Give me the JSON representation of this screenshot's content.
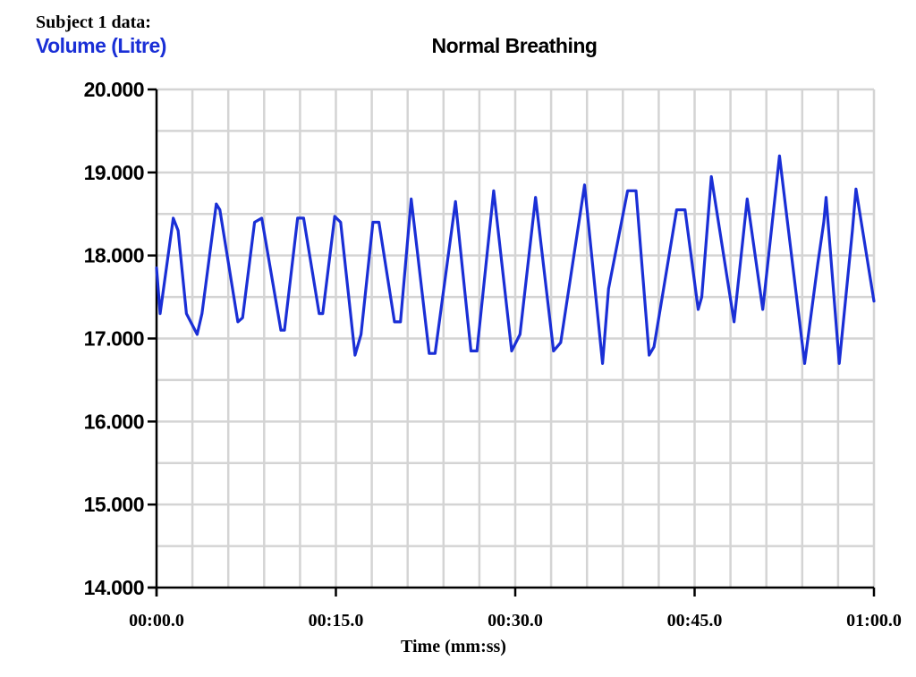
{
  "header": {
    "subject_label": "Subject 1 data:"
  },
  "chart_data": {
    "type": "line",
    "title": "Normal Breathing",
    "ylabel": "Volume (Litre)",
    "xlabel": "Time (mm:ss)",
    "ylim": [
      14.0,
      20.0
    ],
    "xlim": [
      0,
      60
    ],
    "y_ticks": [
      {
        "value": 14.0,
        "label": "14.000"
      },
      {
        "value": 15.0,
        "label": "15.000"
      },
      {
        "value": 16.0,
        "label": "16.000"
      },
      {
        "value": 17.0,
        "label": "17.000"
      },
      {
        "value": 18.0,
        "label": "18.000"
      },
      {
        "value": 19.0,
        "label": "19.000"
      },
      {
        "value": 20.0,
        "label": "20.000"
      }
    ],
    "x_ticks": [
      {
        "value": 0,
        "label": "00:00.0"
      },
      {
        "value": 15,
        "label": "00:15.0"
      },
      {
        "value": 30,
        "label": "00:30.0"
      },
      {
        "value": 45,
        "label": "00:45.0"
      },
      {
        "value": 60,
        "label": "01:00.0"
      }
    ],
    "grid": true,
    "line_color": "#1a2fd6",
    "series": [
      {
        "name": "Volume (Litre)",
        "x": [
          0.0,
          0.3,
          1.4,
          1.8,
          2.5,
          3.4,
          3.8,
          5.0,
          5.3,
          6.8,
          7.2,
          8.2,
          8.8,
          10.4,
          10.7,
          11.8,
          12.3,
          13.6,
          13.9,
          14.9,
          15.4,
          16.6,
          17.1,
          18.1,
          18.6,
          19.9,
          20.4,
          21.3,
          22.8,
          23.3,
          25.0,
          26.3,
          26.8,
          28.2,
          29.7,
          30.4,
          31.7,
          33.2,
          33.8,
          35.8,
          37.3,
          37.8,
          39.4,
          40.1,
          41.2,
          41.6,
          43.5,
          44.2,
          45.3,
          45.6,
          46.4,
          48.3,
          49.4,
          50.7,
          52.1,
          52.6,
          54.2,
          55.3,
          55.8,
          56.0,
          57.1,
          58.2,
          58.5,
          60.0
        ],
        "y": [
          17.85,
          17.3,
          18.45,
          18.3,
          17.3,
          17.05,
          17.3,
          18.62,
          18.55,
          17.2,
          17.25,
          18.4,
          18.45,
          17.1,
          17.1,
          18.45,
          18.45,
          17.3,
          17.3,
          18.47,
          18.4,
          16.8,
          17.05,
          18.4,
          18.4,
          17.2,
          17.2,
          18.68,
          16.82,
          16.82,
          18.65,
          16.85,
          16.85,
          18.78,
          16.85,
          17.05,
          18.7,
          16.85,
          16.95,
          18.85,
          16.7,
          17.6,
          18.78,
          18.78,
          16.8,
          16.9,
          18.55,
          18.55,
          17.35,
          17.5,
          18.95,
          17.2,
          18.68,
          17.35,
          19.2,
          18.6,
          16.7,
          17.9,
          18.4,
          18.7,
          16.7,
          18.3,
          18.8,
          17.45
        ]
      }
    ]
  }
}
